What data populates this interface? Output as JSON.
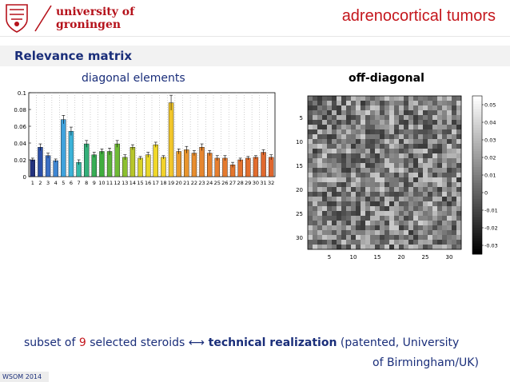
{
  "header": {
    "university_line1": "university of",
    "university_line2": "groningen",
    "slide_title": "adrenocortical tumors"
  },
  "section_title": "Relevance matrix",
  "panels": {
    "left_title": "diagonal elements",
    "right_title": "off-diagonal"
  },
  "footer": {
    "part1": "subset of ",
    "count": "9",
    "part2": "  selected steroids ",
    "arrow": "⟷",
    "tech": " technical realization",
    "part3": "   (patented, University",
    "line2": "of Birmingham/UK)",
    "badge": "WSOM 2014"
  },
  "colors": {
    "brand_red": "#c4161c",
    "title_blue": "#1a2e7a"
  },
  "icons": [
    "university-seal-icon"
  ],
  "chart_data": [
    {
      "type": "bar",
      "title": "diagonal elements",
      "categories": [
        "1",
        "2",
        "3",
        "4",
        "5",
        "6",
        "7",
        "8",
        "9",
        "10",
        "11",
        "12",
        "13",
        "14",
        "15",
        "16",
        "17",
        "18",
        "19",
        "20",
        "21",
        "22",
        "23",
        "24",
        "25",
        "26",
        "27",
        "28",
        "29",
        "30",
        "31",
        "32"
      ],
      "series": [
        {
          "values": [
            0.02,
            0.035,
            0.025,
            0.019,
            0.068,
            0.054,
            0.017,
            0.039,
            0.026,
            0.03,
            0.03,
            0.039,
            0.023,
            0.035,
            0.022,
            0.026,
            0.038,
            0.023,
            0.088,
            0.03,
            0.032,
            0.028,
            0.035,
            0.028,
            0.022,
            0.022,
            0.014,
            0.02,
            0.022,
            0.023,
            0.029,
            0.023
          ]
        }
      ],
      "error": [
        0.002,
        0.004,
        0.003,
        0.002,
        0.005,
        0.005,
        0.003,
        0.004,
        0.003,
        0.003,
        0.004,
        0.004,
        0.003,
        0.003,
        0.002,
        0.003,
        0.003,
        0.002,
        0.009,
        0.003,
        0.004,
        0.003,
        0.004,
        0.003,
        0.003,
        0.003,
        0.003,
        0.002,
        0.002,
        0.002,
        0.003,
        0.003
      ],
      "colors": [
        "#23327e",
        "#2c4fa8",
        "#3c6fc4",
        "#3f86d2",
        "#3fa2dc",
        "#3cb2d8",
        "#36b9a6",
        "#34b07a",
        "#38ad55",
        "#40ad3e",
        "#5cb33a",
        "#6fba35",
        "#8cc030",
        "#b8c62c",
        "#d7d128",
        "#e8d72a",
        "#f0d82a",
        "#f2d22b",
        "#f1c62c",
        "#e89a2c",
        "#e8952e",
        "#e88d2e",
        "#e6862e",
        "#e6822e",
        "#e67e2e",
        "#e57a2e",
        "#e4762e",
        "#e3722e",
        "#e26f2e",
        "#e16c2e",
        "#e0692e",
        "#df662e"
      ],
      "ylim": [
        0,
        0.1
      ],
      "yticks": [
        "0",
        "0.02",
        "0.04",
        "0.06",
        "0.08",
        "0.1"
      ],
      "grid": "vertical dotted"
    },
    {
      "type": "heatmap",
      "title": "off-diagonal",
      "size": 32,
      "xticks": [
        "5",
        "10",
        "15",
        "20",
        "25",
        "30"
      ],
      "yticks": [
        "5",
        "10",
        "15",
        "20",
        "25",
        "30"
      ],
      "colorbar_ticks": [
        "0.05",
        "0.04",
        "0.03",
        "0.02",
        "0.01",
        "0",
        "-0.01",
        "-0.02",
        "-0.03"
      ],
      "colorbar_range": [
        -0.035,
        0.055
      ]
    }
  ]
}
